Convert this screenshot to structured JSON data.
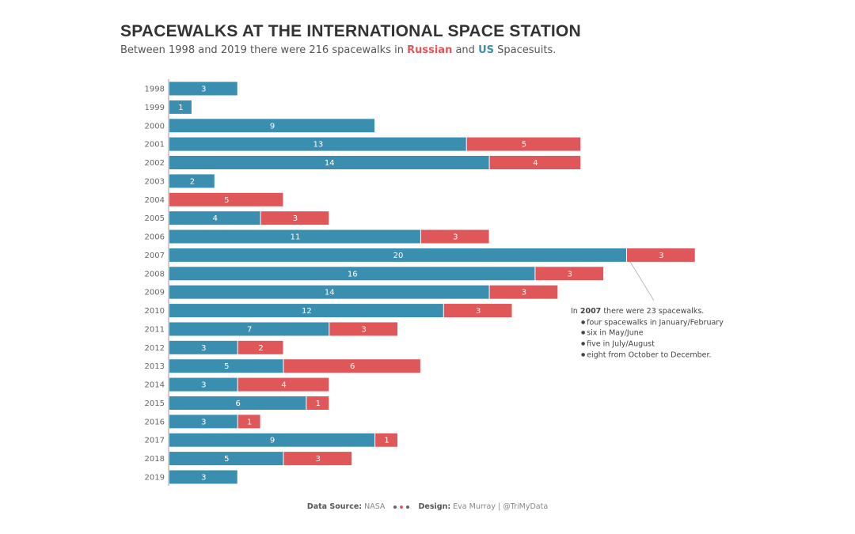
{
  "header": {
    "title": "SPACEWALKS AT THE INTERNATIONAL SPACE STATION",
    "subtitle_pre": "Between 1998 and 2019 there were 216 spacewalks in ",
    "subtitle_ru": "Russian",
    "subtitle_mid": " and ",
    "subtitle_us": "US",
    "subtitle_post": " Spacesuits."
  },
  "annotation": {
    "pre": "In ",
    "year": "2007",
    "post": " there were 23 spacewalks.",
    "items": [
      "four spacewalks in January/February",
      "six in May/June",
      "five in July/August",
      "eight from October to December."
    ]
  },
  "footer": {
    "source_label": "Data Source:",
    "source": " NASA",
    "design_label": "Design:",
    "design": " Eva Murray | @TriMyData"
  },
  "colors": {
    "us": "#3a8fb0",
    "russian": "#e05759"
  },
  "chart_data": {
    "type": "bar",
    "orientation": "horizontal",
    "stacked": true,
    "categories": [
      "1998",
      "1999",
      "2000",
      "2001",
      "2002",
      "2003",
      "2004",
      "2005",
      "2006",
      "2007",
      "2008",
      "2009",
      "2010",
      "2011",
      "2012",
      "2013",
      "2014",
      "2015",
      "2016",
      "2017",
      "2018",
      "2019"
    ],
    "series": [
      {
        "name": "US",
        "values": [
          3,
          1,
          9,
          13,
          14,
          2,
          0,
          4,
          11,
          20,
          16,
          14,
          12,
          7,
          3,
          5,
          3,
          6,
          3,
          9,
          5,
          3
        ]
      },
      {
        "name": "Russian",
        "values": [
          0,
          0,
          0,
          5,
          4,
          0,
          5,
          3,
          3,
          3,
          3,
          3,
          3,
          3,
          2,
          6,
          4,
          1,
          1,
          1,
          3,
          0
        ]
      }
    ],
    "grid": false,
    "xlim": [
      0,
      25
    ]
  }
}
